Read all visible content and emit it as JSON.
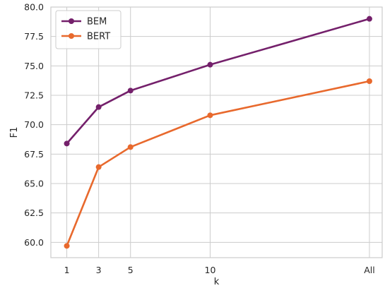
{
  "chart_data": {
    "type": "line",
    "categories": [
      "1",
      "3",
      "5",
      "10",
      "All"
    ],
    "x_positions": [
      1,
      3,
      5,
      10,
      20
    ],
    "xlabel": "k",
    "ylabel": "F1",
    "ylim": [
      58.7,
      80.0
    ],
    "yticks": [
      60.0,
      62.5,
      65.0,
      67.5,
      70.0,
      72.5,
      75.0,
      77.5,
      80.0
    ],
    "ytick_labels": [
      "60.0",
      "62.5",
      "65.0",
      "67.5",
      "70.0",
      "72.5",
      "75.0",
      "77.5",
      "80.0"
    ],
    "grid": true,
    "legend_position": "top-left",
    "series": [
      {
        "name": "BEM",
        "color": "#74206b",
        "values": [
          68.4,
          71.5,
          72.9,
          75.1,
          79.0
        ]
      },
      {
        "name": "BERT",
        "color": "#e8692d",
        "values": [
          59.7,
          66.4,
          68.1,
          70.8,
          73.7
        ]
      }
    ]
  }
}
